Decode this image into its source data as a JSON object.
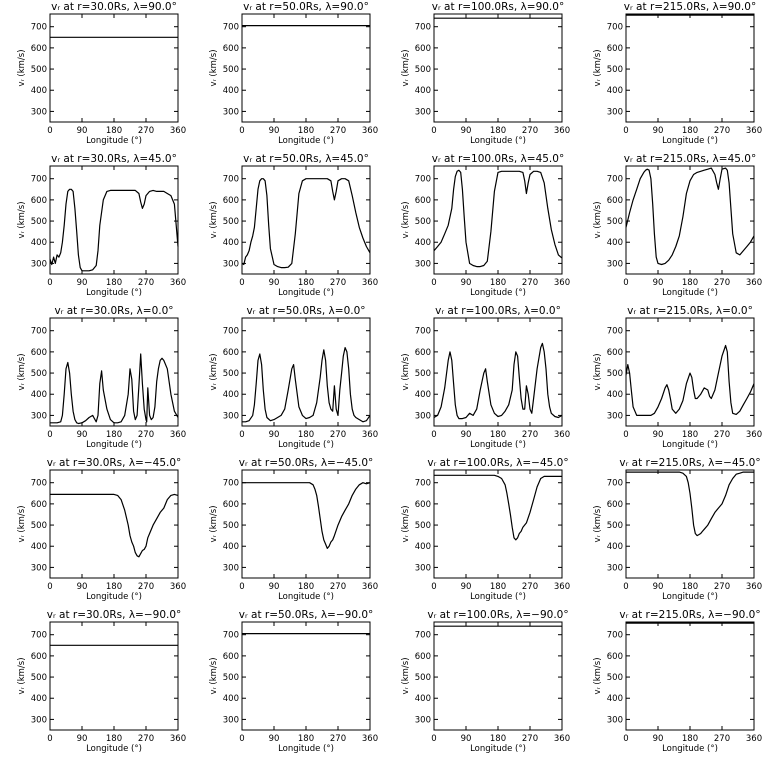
{
  "xlabel": "Longitude (°)",
  "ylabel": "vᵣ (km/s)",
  "x_ticks": [
    0,
    90,
    180,
    270,
    360
  ],
  "y_ticks": [
    300,
    400,
    500,
    600,
    700
  ],
  "xlim": [
    0,
    360
  ],
  "ylim": [
    250,
    760
  ],
  "radii": [
    "30.0",
    "50.0",
    "100.0",
    "215.0"
  ],
  "latitudes": [
    "90.0",
    "45.0",
    "0.0",
    "-45.0",
    "-90.0"
  ],
  "chart_data": [
    {
      "type": "line",
      "title": "vᵣ at r=30.0Rs, λ=90.0°",
      "xlabel": "Longitude (°)",
      "ylabel": "vᵣ (km/s)",
      "xlim": [
        0,
        360
      ],
      "ylim": [
        250,
        760
      ],
      "x": [
        0,
        360
      ],
      "y": [
        650,
        650
      ]
    },
    {
      "type": "line",
      "title": "vᵣ at r=50.0Rs, λ=90.0°",
      "xlabel": "Longitude (°)",
      "ylabel": "vᵣ (km/s)",
      "xlim": [
        0,
        360
      ],
      "ylim": [
        250,
        760
      ],
      "x": [
        0,
        360
      ],
      "y": [
        705,
        705
      ]
    },
    {
      "type": "line",
      "title": "vᵣ at r=100.0Rs, λ=90.0°",
      "xlabel": "Longitude (°)",
      "ylabel": "vᵣ (km/s)",
      "xlim": [
        0,
        360
      ],
      "ylim": [
        250,
        760
      ],
      "x": [
        0,
        360
      ],
      "y": [
        740,
        740
      ]
    },
    {
      "type": "line",
      "title": "vᵣ at r=215.0Rs, λ=90.0°",
      "xlabel": "Longitude (°)",
      "ylabel": "vᵣ (km/s)",
      "xlim": [
        0,
        360
      ],
      "ylim": [
        250,
        760
      ],
      "x": [
        0,
        360
      ],
      "y": [
        755,
        755
      ]
    },
    {
      "type": "line",
      "title": "vᵣ at r=30.0Rs, λ=45.0°",
      "xlabel": "Longitude (°)",
      "ylabel": "vᵣ (km/s)",
      "xlim": [
        0,
        360
      ],
      "ylim": [
        250,
        760
      ],
      "x": [
        0,
        5,
        10,
        15,
        20,
        25,
        30,
        35,
        40,
        45,
        50,
        55,
        60,
        65,
        70,
        75,
        80,
        85,
        90,
        100,
        110,
        120,
        130,
        135,
        140,
        150,
        160,
        170,
        180,
        190,
        200,
        210,
        220,
        230,
        240,
        250,
        255,
        260,
        265,
        270,
        280,
        290,
        300,
        310,
        320,
        330,
        340,
        350,
        360
      ],
      "y": [
        320,
        295,
        330,
        300,
        340,
        330,
        350,
        400,
        480,
        580,
        640,
        650,
        650,
        640,
        560,
        450,
        340,
        280,
        265,
        265,
        265,
        270,
        290,
        360,
        480,
        600,
        640,
        645,
        645,
        645,
        645,
        645,
        645,
        645,
        645,
        630,
        590,
        560,
        580,
        620,
        640,
        645,
        640,
        640,
        640,
        630,
        620,
        580,
        380
      ]
    },
    {
      "type": "line",
      "title": "vᵣ at r=50.0Rs, λ=45.0°",
      "xlabel": "Longitude (°)",
      "ylabel": "vᵣ (km/s)",
      "xlim": [
        0,
        360
      ],
      "ylim": [
        250,
        760
      ],
      "x": [
        0,
        5,
        10,
        15,
        20,
        25,
        30,
        35,
        40,
        45,
        50,
        55,
        60,
        65,
        70,
        75,
        80,
        90,
        100,
        110,
        120,
        130,
        140,
        150,
        160,
        170,
        180,
        190,
        200,
        210,
        220,
        230,
        240,
        250,
        255,
        260,
        265,
        270,
        280,
        290,
        300,
        310,
        320,
        330,
        340,
        350,
        360
      ],
      "y": [
        300,
        295,
        330,
        340,
        360,
        400,
        430,
        470,
        560,
        650,
        690,
        700,
        700,
        690,
        620,
        480,
        370,
        295,
        285,
        280,
        280,
        282,
        300,
        440,
        630,
        690,
        700,
        700,
        700,
        700,
        700,
        700,
        700,
        690,
        640,
        600,
        640,
        690,
        700,
        700,
        690,
        620,
        540,
        470,
        420,
        380,
        350
      ]
    },
    {
      "type": "line",
      "title": "vᵣ at r=100.0Rs, λ=45.0°",
      "xlabel": "Longitude (°)",
      "ylabel": "vᵣ (km/s)",
      "xlim": [
        0,
        360
      ],
      "ylim": [
        250,
        760
      ],
      "x": [
        0,
        5,
        10,
        15,
        20,
        25,
        30,
        40,
        50,
        55,
        60,
        65,
        70,
        75,
        80,
        85,
        90,
        100,
        110,
        120,
        130,
        140,
        150,
        160,
        170,
        180,
        190,
        200,
        210,
        220,
        230,
        240,
        250,
        255,
        260,
        265,
        270,
        280,
        290,
        300,
        310,
        320,
        330,
        340,
        350,
        360
      ],
      "y": [
        360,
        370,
        380,
        390,
        400,
        420,
        440,
        480,
        560,
        650,
        710,
        735,
        740,
        730,
        650,
        520,
        400,
        300,
        290,
        285,
        285,
        290,
        310,
        450,
        640,
        730,
        735,
        735,
        735,
        735,
        735,
        735,
        730,
        690,
        630,
        680,
        720,
        735,
        735,
        730,
        680,
        560,
        460,
        390,
        340,
        325
      ]
    },
    {
      "type": "line",
      "title": "vᵣ at r=215.0Rs, λ=45.0°",
      "xlabel": "Longitude (°)",
      "ylabel": "vᵣ (km/s)",
      "xlim": [
        0,
        360
      ],
      "ylim": [
        250,
        760
      ],
      "x": [
        0,
        10,
        20,
        30,
        40,
        50,
        55,
        60,
        65,
        70,
        75,
        80,
        85,
        90,
        100,
        110,
        120,
        130,
        140,
        150,
        160,
        170,
        180,
        190,
        200,
        210,
        220,
        230,
        240,
        250,
        255,
        260,
        265,
        270,
        280,
        285,
        290,
        295,
        300,
        310,
        320,
        330,
        340,
        350,
        360
      ],
      "y": [
        470,
        540,
        600,
        650,
        700,
        730,
        740,
        745,
        740,
        700,
        580,
        440,
        330,
        300,
        295,
        300,
        315,
        340,
        380,
        430,
        520,
        630,
        690,
        720,
        730,
        735,
        740,
        745,
        750,
        720,
        680,
        650,
        700,
        745,
        750,
        740,
        680,
        560,
        440,
        350,
        340,
        360,
        380,
        400,
        430
      ]
    },
    {
      "type": "line",
      "title": "vᵣ at r=30.0Rs, λ=0.0°",
      "xlabel": "Longitude (°)",
      "ylabel": "vᵣ (km/s)",
      "xlim": [
        0,
        360
      ],
      "ylim": [
        250,
        760
      ],
      "x": [
        0,
        10,
        20,
        30,
        35,
        40,
        45,
        50,
        55,
        60,
        65,
        70,
        75,
        80,
        90,
        100,
        110,
        120,
        125,
        130,
        135,
        140,
        145,
        150,
        160,
        170,
        180,
        190,
        200,
        210,
        220,
        225,
        230,
        235,
        240,
        245,
        250,
        255,
        260,
        265,
        270,
        272,
        275,
        280,
        285,
        290,
        295,
        300,
        305,
        310,
        315,
        320,
        330,
        340,
        350,
        360
      ],
      "y": [
        265,
        265,
        265,
        270,
        300,
        400,
        520,
        550,
        500,
        400,
        320,
        280,
        265,
        262,
        265,
        275,
        290,
        300,
        285,
        270,
        300,
        450,
        510,
        420,
        330,
        280,
        265,
        265,
        270,
        300,
        400,
        520,
        470,
        320,
        280,
        300,
        440,
        590,
        450,
        330,
        280,
        270,
        430,
        300,
        280,
        290,
        340,
        460,
        520,
        560,
        570,
        560,
        520,
        400,
        320,
        290
      ]
    },
    {
      "type": "line",
      "title": "vᵣ at r=50.0Rs, λ=0.0°",
      "xlabel": "Longitude (°)",
      "ylabel": "vᵣ (km/s)",
      "xlim": [
        0,
        360
      ],
      "ylim": [
        250,
        760
      ],
      "x": [
        0,
        10,
        20,
        30,
        35,
        40,
        45,
        50,
        55,
        60,
        65,
        70,
        80,
        90,
        100,
        110,
        120,
        130,
        140,
        145,
        150,
        160,
        170,
        180,
        190,
        200,
        210,
        220,
        225,
        230,
        235,
        240,
        245,
        250,
        255,
        260,
        265,
        270,
        275,
        280,
        285,
        290,
        295,
        300,
        305,
        310,
        315,
        320,
        330,
        340,
        350,
        360
      ],
      "y": [
        270,
        270,
        275,
        300,
        350,
        450,
        560,
        590,
        540,
        420,
        330,
        290,
        275,
        280,
        290,
        300,
        330,
        420,
        520,
        540,
        470,
        340,
        300,
        285,
        290,
        300,
        360,
        480,
        560,
        610,
        560,
        440,
        360,
        330,
        320,
        440,
        330,
        300,
        420,
        500,
        580,
        620,
        600,
        520,
        400,
        330,
        300,
        290,
        280,
        270,
        275,
        300
      ]
    },
    {
      "type": "line",
      "title": "vᵣ at r=100.0Rs, λ=0.0°",
      "xlabel": "Longitude (°)",
      "ylabel": "vᵣ (km/s)",
      "xlim": [
        0,
        360
      ],
      "ylim": [
        250,
        760
      ],
      "x": [
        0,
        10,
        20,
        30,
        40,
        45,
        50,
        55,
        60,
        65,
        70,
        80,
        90,
        100,
        110,
        120,
        130,
        140,
        145,
        150,
        160,
        170,
        180,
        190,
        200,
        210,
        220,
        225,
        230,
        235,
        240,
        245,
        250,
        255,
        260,
        265,
        270,
        275,
        280,
        290,
        300,
        305,
        310,
        315,
        320,
        325,
        330,
        340,
        350,
        360
      ],
      "y": [
        290,
        300,
        340,
        430,
        560,
        600,
        560,
        450,
        350,
        300,
        285,
        285,
        290,
        310,
        300,
        330,
        420,
        500,
        520,
        460,
        350,
        310,
        295,
        300,
        320,
        350,
        420,
        540,
        600,
        580,
        480,
        380,
        330,
        330,
        440,
        400,
        330,
        310,
        380,
        520,
        620,
        640,
        600,
        520,
        400,
        340,
        310,
        295,
        290,
        300
      ]
    },
    {
      "type": "line",
      "title": "vᵣ at r=215.0Rs, λ=0.0°",
      "xlabel": "Longitude (°)",
      "ylabel": "vᵣ (km/s)",
      "xlim": [
        0,
        360
      ],
      "ylim": [
        250,
        760
      ],
      "x": [
        0,
        5,
        10,
        15,
        20,
        30,
        40,
        50,
        60,
        70,
        80,
        90,
        100,
        110,
        115,
        120,
        125,
        130,
        140,
        150,
        160,
        170,
        180,
        185,
        190,
        195,
        200,
        210,
        220,
        230,
        235,
        240,
        250,
        260,
        270,
        280,
        285,
        290,
        295,
        300,
        310,
        320,
        330,
        340,
        350,
        360
      ],
      "y": [
        490,
        540,
        500,
        420,
        340,
        300,
        300,
        300,
        300,
        300,
        310,
        340,
        380,
        430,
        445,
        420,
        380,
        330,
        310,
        330,
        370,
        450,
        500,
        480,
        420,
        380,
        380,
        400,
        430,
        420,
        390,
        380,
        420,
        500,
        580,
        630,
        600,
        460,
        360,
        310,
        305,
        320,
        350,
        380,
        410,
        450
      ]
    },
    {
      "type": "line",
      "title": "vᵣ at r=30.0Rs, λ=−45.0°",
      "xlabel": "Longitude (°)",
      "ylabel": "vᵣ (km/s)",
      "xlim": [
        0,
        360
      ],
      "ylim": [
        250,
        760
      ],
      "x": [
        0,
        30,
        60,
        90,
        120,
        150,
        180,
        190,
        200,
        210,
        220,
        225,
        230,
        235,
        240,
        245,
        250,
        255,
        260,
        265,
        270,
        275,
        280,
        290,
        300,
        310,
        320,
        330,
        340,
        350,
        360
      ],
      "y": [
        645,
        645,
        645,
        645,
        645,
        645,
        645,
        640,
        620,
        570,
        500,
        450,
        420,
        400,
        370,
        355,
        350,
        365,
        380,
        385,
        400,
        440,
        460,
        500,
        530,
        560,
        580,
        620,
        640,
        645,
        640
      ]
    },
    {
      "type": "line",
      "title": "vᵣ at r=50.0Rs, λ=−45.0°",
      "xlabel": "Longitude (°)",
      "ylabel": "vᵣ (km/s)",
      "xlim": [
        0,
        360
      ],
      "ylim": [
        250,
        760
      ],
      "x": [
        0,
        30,
        60,
        90,
        120,
        150,
        180,
        190,
        200,
        205,
        210,
        215,
        220,
        225,
        230,
        235,
        240,
        245,
        250,
        255,
        260,
        270,
        280,
        290,
        300,
        310,
        320,
        330,
        340,
        350,
        360
      ],
      "y": [
        700,
        700,
        700,
        700,
        700,
        700,
        700,
        700,
        690,
        670,
        640,
        590,
        530,
        470,
        430,
        410,
        390,
        400,
        420,
        430,
        450,
        500,
        540,
        570,
        600,
        640,
        670,
        690,
        700,
        695,
        700
      ]
    },
    {
      "type": "line",
      "title": "vᵣ at r=100.0Rs, λ=−45.0°",
      "xlabel": "Longitude (°)",
      "ylabel": "vᵣ (km/s)",
      "xlim": [
        0,
        360
      ],
      "ylim": [
        250,
        760
      ],
      "x": [
        0,
        30,
        60,
        90,
        120,
        150,
        160,
        170,
        180,
        190,
        200,
        205,
        210,
        215,
        220,
        225,
        230,
        235,
        240,
        245,
        250,
        260,
        270,
        280,
        290,
        300,
        310,
        320,
        330,
        340,
        350,
        360
      ],
      "y": [
        735,
        735,
        735,
        735,
        735,
        735,
        735,
        735,
        730,
        720,
        690,
        650,
        600,
        550,
        490,
        440,
        430,
        440,
        460,
        470,
        490,
        510,
        560,
        620,
        680,
        720,
        730,
        730,
        730,
        730,
        730,
        730
      ]
    },
    {
      "type": "line",
      "title": "vᵣ at r=215.0Rs, λ=−45.0°",
      "xlabel": "Longitude (°)",
      "ylabel": "vᵣ (km/s)",
      "xlim": [
        0,
        360
      ],
      "ylim": [
        250,
        760
      ],
      "x": [
        0,
        30,
        60,
        90,
        120,
        150,
        160,
        170,
        175,
        180,
        185,
        190,
        195,
        200,
        205,
        210,
        215,
        220,
        230,
        240,
        250,
        260,
        270,
        280,
        290,
        300,
        310,
        320,
        330,
        340,
        350,
        360
      ],
      "y": [
        750,
        750,
        750,
        750,
        750,
        750,
        745,
        730,
        700,
        650,
        580,
        500,
        460,
        450,
        455,
        460,
        470,
        480,
        500,
        530,
        560,
        580,
        600,
        640,
        690,
        720,
        740,
        745,
        750,
        750,
        750,
        750
      ]
    },
    {
      "type": "line",
      "title": "vᵣ at r=30.0Rs, λ=−90.0°",
      "xlabel": "Longitude (°)",
      "ylabel": "vᵣ (km/s)",
      "xlim": [
        0,
        360
      ],
      "ylim": [
        250,
        760
      ],
      "x": [
        0,
        360
      ],
      "y": [
        650,
        650
      ]
    },
    {
      "type": "line",
      "title": "vᵣ at r=50.0Rs, λ=−90.0°",
      "xlabel": "Longitude (°)",
      "ylabel": "vᵣ (km/s)",
      "xlim": [
        0,
        360
      ],
      "ylim": [
        250,
        760
      ],
      "x": [
        0,
        360
      ],
      "y": [
        705,
        705
      ]
    },
    {
      "type": "line",
      "title": "vᵣ at r=100.0Rs, λ=−90.0°",
      "xlabel": "Longitude (°)",
      "ylabel": "vᵣ (km/s)",
      "xlim": [
        0,
        360
      ],
      "ylim": [
        250,
        760
      ],
      "x": [
        0,
        360
      ],
      "y": [
        740,
        740
      ]
    },
    {
      "type": "line",
      "title": "vᵣ at r=215.0Rs, λ=−90.0°",
      "xlabel": "Longitude (°)",
      "ylabel": "vᵣ (km/s)",
      "xlim": [
        0,
        360
      ],
      "ylim": [
        250,
        760
      ],
      "x": [
        0,
        360
      ],
      "y": [
        755,
        755
      ]
    }
  ]
}
